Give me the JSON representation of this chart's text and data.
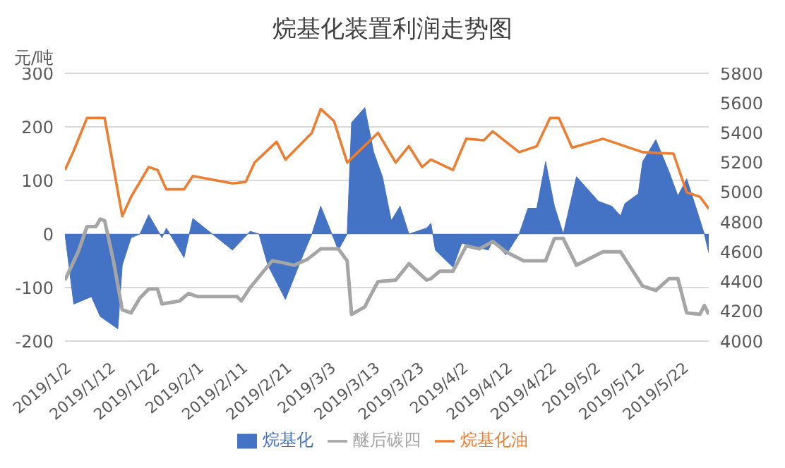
{
  "chart_data": {
    "type": "area",
    "title": "烷基化装置利润走势图",
    "ylabel": "元/吨",
    "xlim": [
      "2019-01-02",
      "2019-05-28"
    ],
    "xticks": [
      {
        "value": "2019-01-02",
        "label": "2019/1/2"
      },
      {
        "value": "2019-01-12",
        "label": "2019/1/12"
      },
      {
        "value": "2019-01-22",
        "label": "2019/1/22"
      },
      {
        "value": "2019-02-01",
        "label": "2019/2/1"
      },
      {
        "value": "2019-02-11",
        "label": "2019/2/11"
      },
      {
        "value": "2019-02-21",
        "label": "2019/2/21"
      },
      {
        "value": "2019-03-03",
        "label": "2019/3/3"
      },
      {
        "value": "2019-03-13",
        "label": "2019/3/13"
      },
      {
        "value": "2019-03-23",
        "label": "2019/3/23"
      },
      {
        "value": "2019-04-02",
        "label": "2019/4/2"
      },
      {
        "value": "2019-04-12",
        "label": "2019/4/12"
      },
      {
        "value": "2019-04-22",
        "label": "2019/4/22"
      },
      {
        "value": "2019-05-02",
        "label": "2019/5/2"
      },
      {
        "value": "2019-05-12",
        "label": "2019/5/12"
      },
      {
        "value": "2019-05-22",
        "label": "2019/5/22"
      }
    ],
    "ylim": [
      -200,
      300
    ],
    "yticks": [
      -200,
      -100,
      0,
      100,
      200,
      300
    ],
    "y2lim": [
      4000,
      5800
    ],
    "y2ticks": [
      4000,
      4200,
      4400,
      4600,
      4800,
      5000,
      5200,
      5400,
      5600,
      5800
    ],
    "grid": "y",
    "legend": "bottom",
    "marker": "none",
    "line_style": "solid",
    "series": [
      {
        "name": "烷基化",
        "color": "#4472c4",
        "x": [
          "2019-01-02",
          "2019-01-04",
          "2019-01-08",
          "2019-01-10",
          "2019-01-14",
          "2019-01-15",
          "2019-01-17",
          "2019-01-19",
          "2019-01-21",
          "2019-01-24",
          "2019-01-25",
          "2019-01-29",
          "2019-01-31",
          "2019-02-09",
          "2019-02-13",
          "2019-02-15",
          "2019-02-17",
          "2019-02-21",
          "2019-02-25",
          "2019-02-27",
          "2019-03-01",
          "2019-03-05",
          "2019-03-07",
          "2019-03-08",
          "2019-03-11",
          "2019-03-13",
          "2019-03-15",
          "2019-03-17",
          "2019-03-19",
          "2019-03-21",
          "2019-03-25",
          "2019-03-26",
          "2019-03-27",
          "2019-03-31",
          "2019-04-02",
          "2019-04-08",
          "2019-04-09",
          "2019-04-12",
          "2019-04-15",
          "2019-04-17",
          "2019-04-19",
          "2019-04-21",
          "2019-04-23",
          "2019-04-25",
          "2019-04-28",
          "2019-05-03",
          "2019-05-06",
          "2019-05-08",
          "2019-05-09",
          "2019-05-12",
          "2019-05-13",
          "2019-05-16",
          "2019-05-19",
          "2019-05-21",
          "2019-05-23",
          "2019-05-25",
          "2019-05-27",
          "2019-05-28"
        ],
        "values": [
          0,
          -131,
          -117,
          -154,
          -177,
          -58,
          -7,
          0,
          36,
          -7,
          11,
          -44,
          29,
          -30,
          5,
          0,
          -58,
          -122,
          -39,
          0,
          52,
          -30,
          0,
          208,
          236,
          153,
          107,
          25,
          52,
          0,
          11,
          20,
          -30,
          -62,
          -17,
          -30,
          -12,
          -39,
          0,
          48,
          48,
          135,
          52,
          0,
          107,
          61,
          52,
          34,
          57,
          75,
          135,
          176,
          116,
          71,
          103,
          52,
          0,
          -35
        ]
      },
      {
        "name": "醚后碳四",
        "type": "line",
        "axis": "y2",
        "color": "#a5a5a5",
        "x": [
          "2019-01-02",
          "2019-01-05",
          "2019-01-07",
          "2019-01-09",
          "2019-01-10",
          "2019-01-11",
          "2019-01-13",
          "2019-01-15",
          "2019-01-17",
          "2019-01-19",
          "2019-01-21",
          "2019-01-23",
          "2019-01-24",
          "2019-01-28",
          "2019-01-30",
          "2019-02-01",
          "2019-02-10",
          "2019-02-11",
          "2019-02-13",
          "2019-02-18",
          "2019-02-20",
          "2019-02-23",
          "2019-02-26",
          "2019-03-01",
          "2019-03-05",
          "2019-03-07",
          "2019-03-08",
          "2019-03-11",
          "2019-03-12",
          "2019-03-14",
          "2019-03-18",
          "2019-03-21",
          "2019-03-25",
          "2019-03-26",
          "2019-03-28",
          "2019-03-31",
          "2019-04-03",
          "2019-04-06",
          "2019-04-09",
          "2019-04-12",
          "2019-04-16",
          "2019-04-21",
          "2019-04-23",
          "2019-04-25",
          "2019-04-28",
          "2019-05-04",
          "2019-05-08",
          "2019-05-13",
          "2019-05-16",
          "2019-05-19",
          "2019-05-21",
          "2019-05-23",
          "2019-05-26",
          "2019-05-27",
          "2019-05-28"
        ],
        "values": [
          4410,
          4600,
          4770,
          4770,
          4820,
          4810,
          4540,
          4210,
          4190,
          4290,
          4350,
          4350,
          4250,
          4270,
          4320,
          4300,
          4300,
          4270,
          4360,
          4540,
          4530,
          4510,
          4550,
          4620,
          4620,
          4540,
          4180,
          4230,
          4290,
          4400,
          4410,
          4520,
          4410,
          4420,
          4470,
          4470,
          4640,
          4620,
          4670,
          4600,
          4540,
          4540,
          4690,
          4690,
          4510,
          4600,
          4600,
          4370,
          4340,
          4420,
          4420,
          4190,
          4180,
          4240,
          4180
        ]
      },
      {
        "name": "烷基化油",
        "type": "line",
        "axis": "y2",
        "color": "#ed7d31",
        "x": [
          "2019-01-02",
          "2019-01-04",
          "2019-01-07",
          "2019-01-11",
          "2019-01-15",
          "2019-01-17",
          "2019-01-21",
          "2019-01-23",
          "2019-01-25",
          "2019-01-29",
          "2019-01-31",
          "2019-02-09",
          "2019-02-12",
          "2019-02-14",
          "2019-02-19",
          "2019-02-21",
          "2019-02-27",
          "2019-03-01",
          "2019-03-04",
          "2019-03-07",
          "2019-03-14",
          "2019-03-18",
          "2019-03-21",
          "2019-03-24",
          "2019-03-26",
          "2019-03-31",
          "2019-04-03",
          "2019-04-07",
          "2019-04-09",
          "2019-04-15",
          "2019-04-19",
          "2019-04-22",
          "2019-04-24",
          "2019-04-27",
          "2019-05-04",
          "2019-05-13",
          "2019-05-20",
          "2019-05-23",
          "2019-05-26",
          "2019-05-28"
        ],
        "values": [
          5150,
          5280,
          5500,
          5500,
          4840,
          4970,
          5170,
          5150,
          5020,
          5020,
          5110,
          5060,
          5070,
          5200,
          5340,
          5220,
          5400,
          5560,
          5480,
          5200,
          5400,
          5200,
          5310,
          5170,
          5220,
          5150,
          5360,
          5350,
          5410,
          5270,
          5310,
          5500,
          5500,
          5300,
          5360,
          5270,
          5260,
          5000,
          4970,
          4890
        ]
      }
    ]
  }
}
